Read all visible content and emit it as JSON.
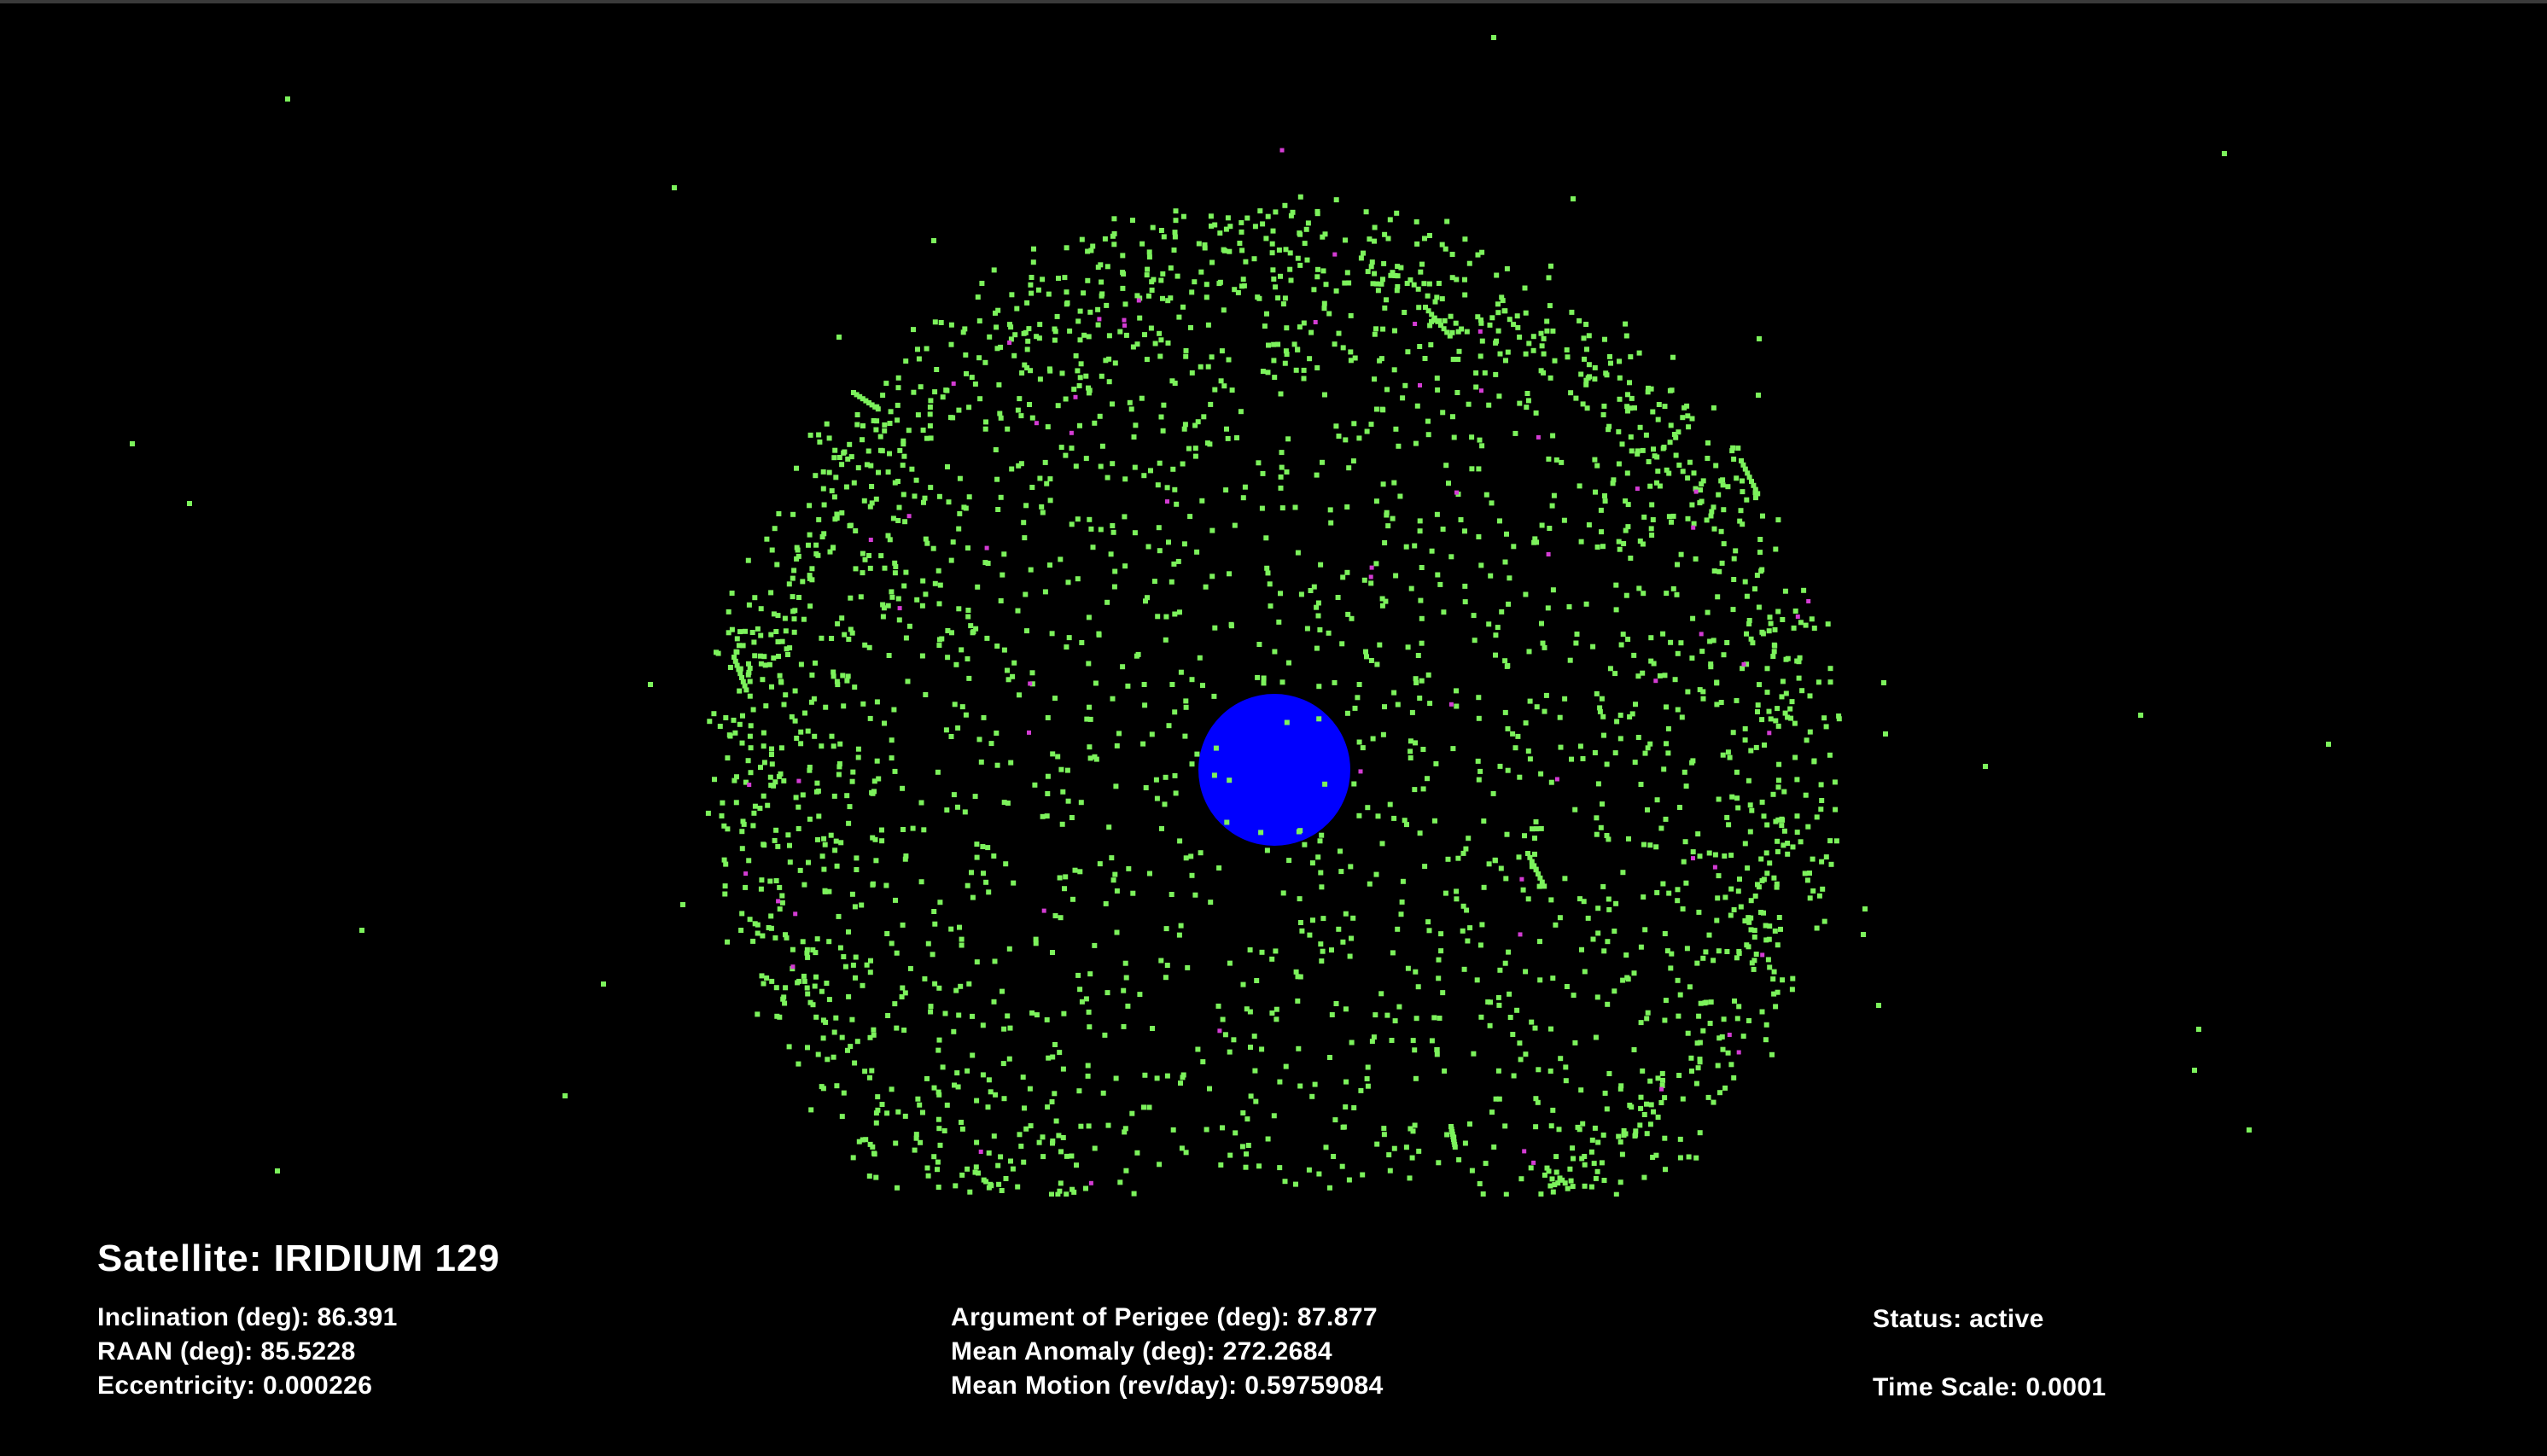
{
  "satellite": {
    "title": "Satellite: IRIDIUM 129"
  },
  "orbital_elements": {
    "inclination": "Inclination (deg): 86.391",
    "raan": "RAAN (deg): 85.5228",
    "eccentricity": "Eccentricity: 0.000226",
    "argument_of_perigee": "Argument of Perigee (deg): 87.877",
    "mean_anomaly": "Mean Anomaly (deg): 272.2684",
    "mean_motion": "Mean Motion (rev/day): 0.59759084"
  },
  "status": {
    "status_text": "Status: active",
    "time_scale": "Time Scale: 0.0001"
  },
  "colors": {
    "background": "#000000",
    "earth": "#0000ff",
    "satellite_active": "#7cf25c",
    "satellite_highlight": "#d43cd4",
    "text": "#ffffff"
  },
  "scene": {
    "earth_icon": "earth-sphere",
    "satellite_icon": "satellite-dot",
    "active_satellite_count": 3000,
    "highlighted_satellite_count": 60,
    "outer_satellite_count": 28
  }
}
